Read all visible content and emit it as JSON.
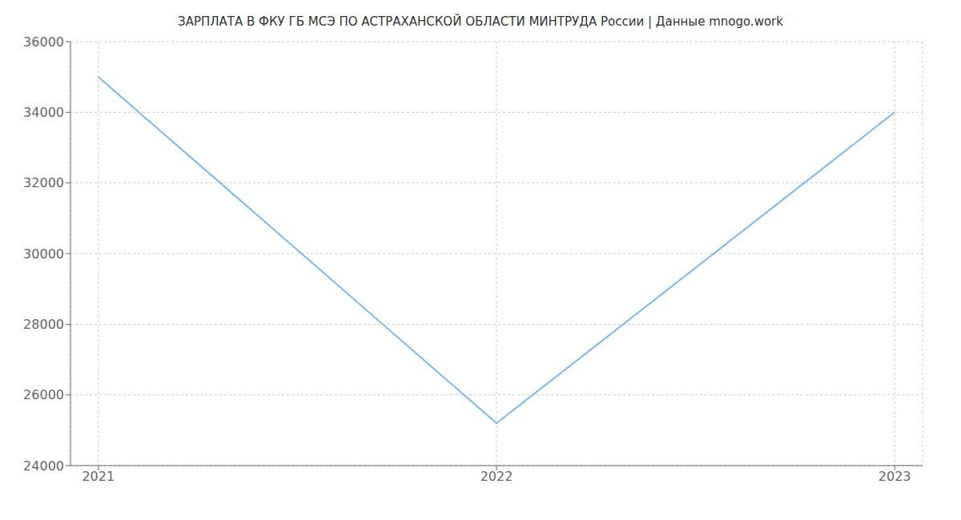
{
  "chart_data": {
    "type": "line",
    "title": "ЗАРПЛАТА В ФКУ ГБ МСЭ ПО АСТРАХАНСКОЙ ОБЛАСТИ МИНТРУДА России | Данные mnogo.work",
    "x": [
      2021,
      2022,
      2023
    ],
    "values": [
      35000,
      25200,
      34000
    ],
    "color": "#7ab8e8",
    "xlim": [
      2020.93,
      2023.07
    ],
    "xticks": [
      2021,
      2022,
      2023
    ],
    "ylim": [
      24000,
      36000
    ],
    "yticks": [
      24000,
      26000,
      28000,
      30000,
      32000,
      34000,
      36000
    ],
    "grid": true
  }
}
